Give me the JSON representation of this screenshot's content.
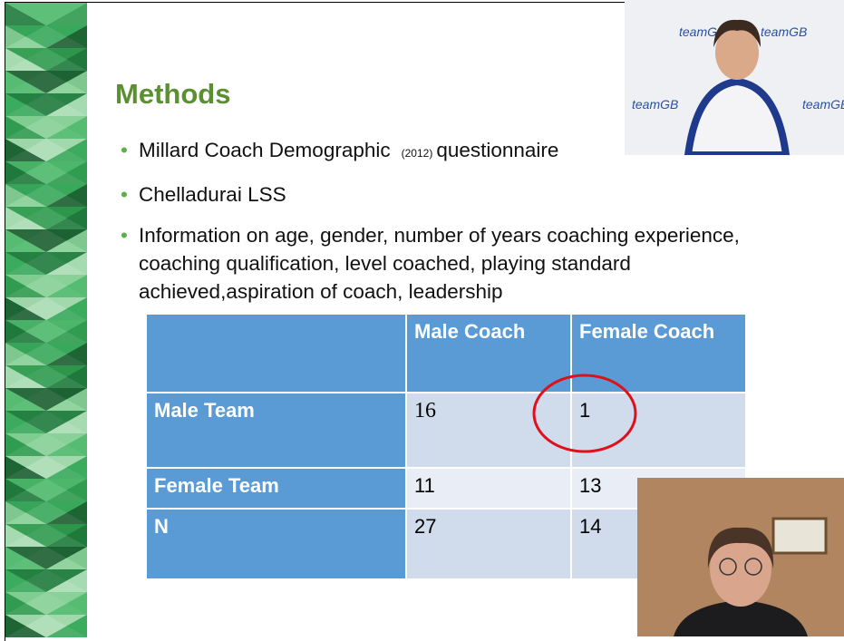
{
  "slide": {
    "title": "Methods",
    "bullets": [
      {
        "text": "Millard Coach Demographic",
        "note": "(2012)",
        "tail": "questionnaire"
      },
      {
        "text": "Chelladurai LSS"
      },
      {
        "text": "Information on age, gender, number of years coaching experience, coaching qualification, level coached, playing standard achieved,aspiration of coach, leadership"
      }
    ],
    "table": {
      "columns": [
        "Male Coach",
        "Female Coach"
      ],
      "rows": [
        {
          "label": "Male Team",
          "values": [
            16,
            1
          ]
        },
        {
          "label": "Female Team",
          "values": [
            11,
            13
          ]
        },
        {
          "label": "N",
          "values": [
            27,
            14
          ]
        }
      ]
    }
  }
}
